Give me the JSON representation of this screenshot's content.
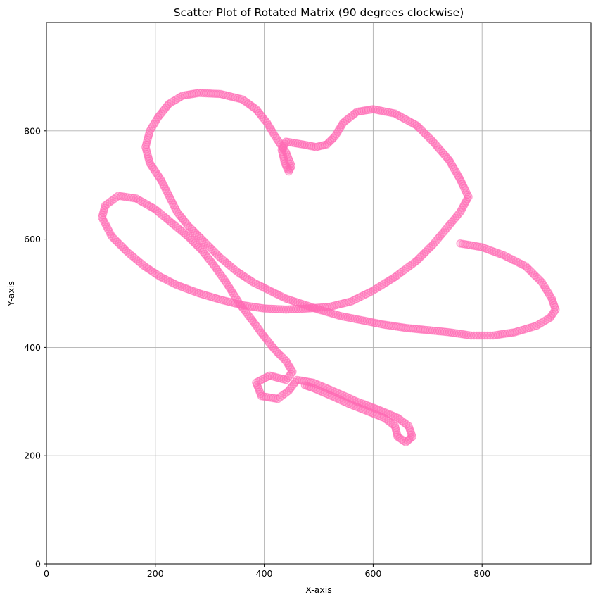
{
  "chart_data": {
    "type": "scatter",
    "title": "Scatter Plot of Rotated Matrix (90 degrees clockwise)",
    "xlabel": "X-axis",
    "ylabel": "Y-axis",
    "xlim": [
      0,
      1000
    ],
    "ylim": [
      0,
      1000
    ],
    "xticks": [
      0,
      200,
      400,
      600,
      800
    ],
    "yticks": [
      0,
      200,
      400,
      600,
      800
    ],
    "grid": true,
    "marker": "circle",
    "color": "#ff69b4",
    "alpha": 0.6,
    "path_points": [
      [
        760,
        592
      ],
      [
        800,
        585
      ],
      [
        840,
        570
      ],
      [
        880,
        550
      ],
      [
        910,
        520
      ],
      [
        928,
        490
      ],
      [
        935,
        470
      ],
      [
        925,
        455
      ],
      [
        900,
        440
      ],
      [
        860,
        428
      ],
      [
        820,
        422
      ],
      [
        780,
        422
      ],
      [
        740,
        428
      ],
      [
        700,
        432
      ],
      [
        660,
        436
      ],
      [
        620,
        442
      ],
      [
        580,
        450
      ],
      [
        540,
        458
      ],
      [
        500,
        470
      ],
      [
        470,
        480
      ],
      [
        440,
        490
      ],
      [
        410,
        505
      ],
      [
        380,
        520
      ],
      [
        350,
        540
      ],
      [
        320,
        565
      ],
      [
        290,
        595
      ],
      [
        260,
        625
      ],
      [
        240,
        650
      ],
      [
        225,
        680
      ],
      [
        210,
        710
      ],
      [
        190,
        740
      ],
      [
        182,
        770
      ],
      [
        190,
        800
      ],
      [
        205,
        825
      ],
      [
        225,
        850
      ],
      [
        250,
        865
      ],
      [
        280,
        870
      ],
      [
        320,
        868
      ],
      [
        360,
        858
      ],
      [
        385,
        840
      ],
      [
        405,
        815
      ],
      [
        420,
        790
      ],
      [
        440,
        760
      ],
      [
        450,
        735
      ],
      [
        445,
        725
      ],
      [
        438,
        740
      ],
      [
        432,
        765
      ],
      [
        440,
        780
      ],
      [
        470,
        775
      ],
      [
        495,
        770
      ],
      [
        515,
        775
      ],
      [
        530,
        790
      ],
      [
        545,
        815
      ],
      [
        570,
        835
      ],
      [
        600,
        840
      ],
      [
        640,
        832
      ],
      [
        680,
        810
      ],
      [
        710,
        780
      ],
      [
        740,
        745
      ],
      [
        760,
        710
      ],
      [
        775,
        678
      ],
      [
        760,
        650
      ],
      [
        735,
        620
      ],
      [
        710,
        590
      ],
      [
        680,
        560
      ],
      [
        640,
        530
      ],
      [
        600,
        505
      ],
      [
        560,
        485
      ],
      [
        520,
        475
      ],
      [
        480,
        472
      ],
      [
        440,
        470
      ],
      [
        400,
        472
      ],
      [
        360,
        478
      ],
      [
        320,
        488
      ],
      [
        280,
        500
      ],
      [
        240,
        515
      ],
      [
        210,
        530
      ],
      [
        180,
        550
      ],
      [
        150,
        575
      ],
      [
        120,
        605
      ],
      [
        102,
        640
      ],
      [
        108,
        662
      ],
      [
        132,
        680
      ],
      [
        165,
        675
      ],
      [
        200,
        655
      ],
      [
        230,
        630
      ],
      [
        260,
        605
      ],
      [
        285,
        580
      ],
      [
        305,
        555
      ],
      [
        330,
        520
      ],
      [
        355,
        480
      ],
      [
        378,
        450
      ],
      [
        400,
        420
      ],
      [
        420,
        395
      ],
      [
        440,
        375
      ],
      [
        452,
        355
      ],
      [
        440,
        340
      ],
      [
        410,
        348
      ],
      [
        385,
        335
      ],
      [
        395,
        310
      ],
      [
        425,
        305
      ],
      [
        445,
        320
      ],
      [
        460,
        340
      ],
      [
        490,
        335
      ],
      [
        530,
        318
      ],
      [
        570,
        300
      ],
      [
        610,
        285
      ],
      [
        645,
        270
      ],
      [
        665,
        255
      ],
      [
        672,
        235
      ],
      [
        660,
        225
      ],
      [
        645,
        235
      ],
      [
        640,
        255
      ],
      [
        620,
        270
      ],
      [
        590,
        282
      ],
      [
        555,
        296
      ],
      [
        520,
        312
      ],
      [
        490,
        325
      ],
      [
        475,
        330
      ]
    ]
  }
}
